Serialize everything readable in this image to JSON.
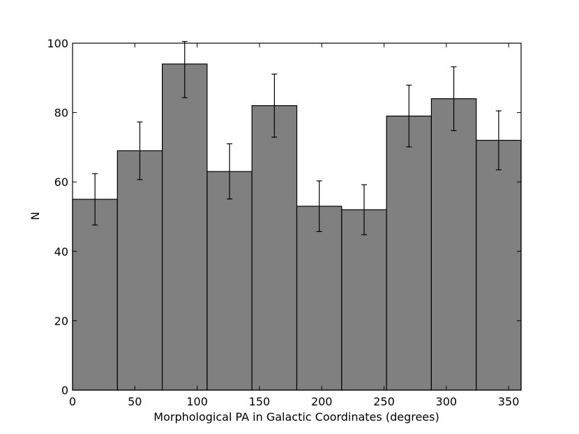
{
  "chart_data": {
    "type": "bar",
    "title": "",
    "xlabel": "Morphological PA in Galactic Coordinates (degrees)",
    "ylabel": "N",
    "xlim": [
      0,
      360
    ],
    "ylim": [
      0,
      100
    ],
    "bin_edges": [
      0,
      36,
      72,
      108,
      144,
      180,
      216,
      252,
      288,
      324,
      360
    ],
    "values": [
      55,
      69,
      94,
      63,
      82,
      53,
      52,
      79,
      84,
      72
    ],
    "error_low": [
      47.6,
      60.7,
      84.3,
      55.1,
      72.9,
      45.7,
      44.8,
      70.1,
      74.8,
      63.5
    ],
    "error_high": [
      62.4,
      77.3,
      100.5,
      71.0,
      91.1,
      60.3,
      59.2,
      87.9,
      93.2,
      80.5
    ],
    "x_ticks": [
      0,
      50,
      100,
      150,
      200,
      250,
      300,
      350
    ],
    "y_ticks": [
      0,
      20,
      40,
      60,
      80,
      100
    ],
    "x_tick_labels": [
      "0",
      "50",
      "100",
      "150",
      "200",
      "250",
      "300",
      "350"
    ],
    "y_tick_labels": [
      "0",
      "20",
      "40",
      "60",
      "80",
      "100"
    ],
    "grid": false,
    "legend": "none",
    "bar_color": "#808080",
    "edge_color": "#000000"
  }
}
